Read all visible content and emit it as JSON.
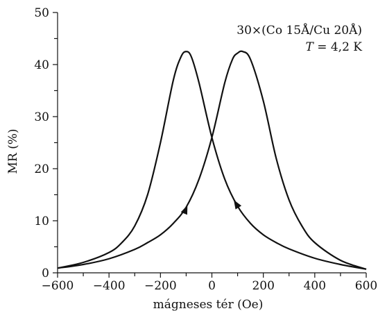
{
  "chart_data": {
    "type": "line",
    "xlabel": "mágneses tér (Oe)",
    "ylabel": "MR (%)",
    "xlim": [
      -600,
      600
    ],
    "ylim": [
      0,
      50
    ],
    "x_ticks": [
      "−600",
      "−400",
      "−200",
      "0",
      "200",
      "400",
      "600"
    ],
    "y_ticks": [
      "0",
      "10",
      "20",
      "30",
      "40",
      "50"
    ],
    "annotation": {
      "line1": "30×(Co 15Å/Cu 20Å)",
      "line2_italic": "T",
      "line2_rest": " = 4,2 K"
    },
    "grid": false,
    "series": [
      {
        "x": [
          -600,
          -500,
          -400,
          -350,
          -300,
          -250,
          -200,
          -150,
          -120,
          -100,
          -80,
          -50,
          0,
          50,
          100,
          150,
          200,
          250,
          300,
          400,
          500,
          600
        ],
        "y": [
          0.9,
          2.0,
          3.9,
          5.8,
          9.0,
          15.0,
          25.0,
          37.0,
          41.5,
          42.5,
          41.5,
          36.5,
          26.0,
          18.0,
          12.8,
          9.5,
          7.3,
          5.8,
          4.6,
          2.8,
          1.6,
          0.7
        ]
      },
      {
        "x": [
          -600,
          -500,
          -400,
          -300,
          -250,
          -200,
          -150,
          -100,
          -50,
          0,
          50,
          80,
          100,
          120,
          150,
          200,
          250,
          300,
          350,
          400,
          500,
          600
        ],
        "y": [
          0.9,
          1.6,
          2.7,
          4.5,
          5.8,
          7.3,
          9.5,
          12.6,
          18.0,
          26.0,
          36.5,
          41.0,
          42.2,
          42.5,
          41.0,
          33.0,
          22.0,
          14.0,
          9.0,
          5.8,
          2.4,
          0.7
        ]
      }
    ]
  }
}
